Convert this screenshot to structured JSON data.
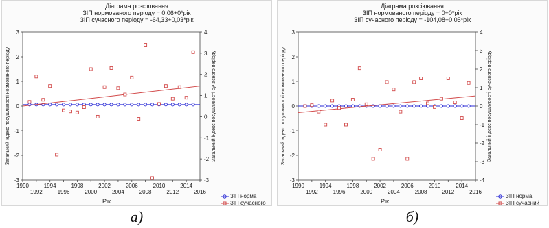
{
  "chart_data": [
    {
      "type": "scatter",
      "title": "Діаграма розсіювання",
      "subtitle1": "ЗІП нормованого періоду = 0,06+0*рік",
      "subtitle2": "ЗІП сучасного періоду = -64,33+0,03*рік",
      "xlabel": "Рік",
      "ylabel_left": "Загальний індекс посушливості нормованого періоду",
      "ylabel_right": "Загальний індекс посушливості сучасного періоду",
      "xlim": [
        1990,
        2016
      ],
      "ylim_left": [
        -3,
        3
      ],
      "ylim_right": [
        -3,
        4
      ],
      "xticks_top": [
        "1990",
        "1994",
        "1998",
        "2002",
        "2006",
        "2010",
        "2014"
      ],
      "xticks_bottom": [
        "1992",
        "1996",
        "2000",
        "2004",
        "2008",
        "2012",
        "2016"
      ],
      "yticks_left": [
        "-3",
        "-2",
        "-1",
        "0",
        "1",
        "2",
        "3"
      ],
      "yticks_right": [
        "-3",
        "-2",
        "-1",
        "0",
        "1",
        "2",
        "3",
        "4"
      ],
      "legend": [
        "ЗІП норма",
        "ЗІП сучасного"
      ],
      "caption": "а)",
      "series": [
        {
          "name": "ЗІП норма",
          "axis": "left",
          "x": [
            1991,
            1992,
            1993,
            1994,
            1995,
            1996,
            1997,
            1998,
            1999,
            2000,
            2001,
            2002,
            2003,
            2004,
            2005,
            2006,
            2007,
            2008,
            2009,
            2010,
            2011,
            2012,
            2013,
            2014,
            2015
          ],
          "y": [
            0.06,
            0.06,
            0.06,
            0.06,
            0.06,
            0.06,
            0.06,
            0.06,
            0.06,
            0.06,
            0.06,
            0.06,
            0.06,
            0.06,
            0.06,
            0.06,
            0.06,
            0.06,
            0.06,
            0.06,
            0.06,
            0.06,
            0.06,
            0.06,
            0.06
          ],
          "fit": [
            0.06,
            0.06
          ]
        },
        {
          "name": "ЗІП сучасного",
          "axis": "right",
          "x": [
            1991,
            1992,
            1993,
            1994,
            1995,
            1996,
            1997,
            1998,
            1999,
            2000,
            2001,
            2002,
            2003,
            2004,
            2005,
            2006,
            2007,
            2008,
            2009,
            2010,
            2011,
            2012,
            2013,
            2014,
            2015
          ],
          "y": [
            0.7,
            1.9,
            0.8,
            1.45,
            -1.8,
            0.3,
            0.25,
            0.2,
            0.45,
            2.25,
            0.0,
            1.4,
            2.3,
            1.35,
            1.05,
            1.85,
            -0.1,
            3.4,
            -2.9,
            0.6,
            1.45,
            0.85,
            1.4,
            0.9,
            3.05
          ],
          "fit": [
            0.5,
            1.45
          ]
        }
      ]
    },
    {
      "type": "scatter",
      "title": "Діаграма розсіювання",
      "subtitle1": "ЗІП нормованого періоду = 0+0*рік",
      "subtitle2": "ЗІП сучасного періоду = -104,08+0,05*рік",
      "xlabel": "Рік",
      "ylabel_left": "Загальний індекс посушливості нормованого періоду",
      "ylabel_right": "Загальний індекс посушливості сучасного періоду",
      "xlim": [
        1990,
        2016
      ],
      "ylim_left": [
        -3,
        3
      ],
      "ylim_right": [
        -4,
        4
      ],
      "xticks_top": [
        "1990",
        "1994",
        "1998",
        "2002",
        "2006",
        "2010",
        "2014"
      ],
      "xticks_bottom": [
        "1992",
        "1996",
        "2000",
        "2004",
        "2008",
        "2012",
        "2016"
      ],
      "yticks_left": [
        "-3",
        "-2",
        "-1",
        "0",
        "1",
        "2",
        "3"
      ],
      "yticks_right": [
        "-4",
        "-3",
        "-2",
        "-1",
        "0",
        "1",
        "2",
        "3",
        "4"
      ],
      "legend": [
        "ЗІП норма",
        "ЗІП сучасний"
      ],
      "caption": "б)",
      "series": [
        {
          "name": "ЗІП норма",
          "axis": "left",
          "x": [
            1991,
            1992,
            1993,
            1994,
            1995,
            1996,
            1997,
            1998,
            1999,
            2000,
            2001,
            2002,
            2003,
            2004,
            2005,
            2006,
            2007,
            2008,
            2009,
            2010,
            2011,
            2012,
            2013,
            2014,
            2015
          ],
          "y": [
            0,
            0,
            0,
            0,
            0,
            0,
            0,
            0,
            0,
            0,
            0,
            0,
            0,
            0,
            0,
            0,
            0,
            0,
            0,
            0,
            0,
            0,
            0,
            0,
            0
          ],
          "fit": [
            0,
            0
          ]
        },
        {
          "name": "ЗІП сучасний",
          "axis": "right",
          "x": [
            1991,
            1992,
            1993,
            1994,
            1995,
            1996,
            1997,
            1998,
            1999,
            2000,
            2001,
            2002,
            2003,
            2004,
            2005,
            2006,
            2007,
            2008,
            2009,
            2010,
            2011,
            2012,
            2013,
            2014,
            2015
          ],
          "y": [
            0.0,
            0.05,
            -0.3,
            -1.0,
            0.3,
            -0.1,
            -1.0,
            0.35,
            2.05,
            0.1,
            -2.85,
            -2.35,
            1.3,
            0.9,
            -0.3,
            -2.85,
            1.3,
            1.5,
            0.15,
            -0.05,
            0.4,
            1.5,
            0.2,
            -0.65,
            1.25
          ],
          "fit": [
            -0.35,
            0.55
          ]
        }
      ]
    }
  ]
}
